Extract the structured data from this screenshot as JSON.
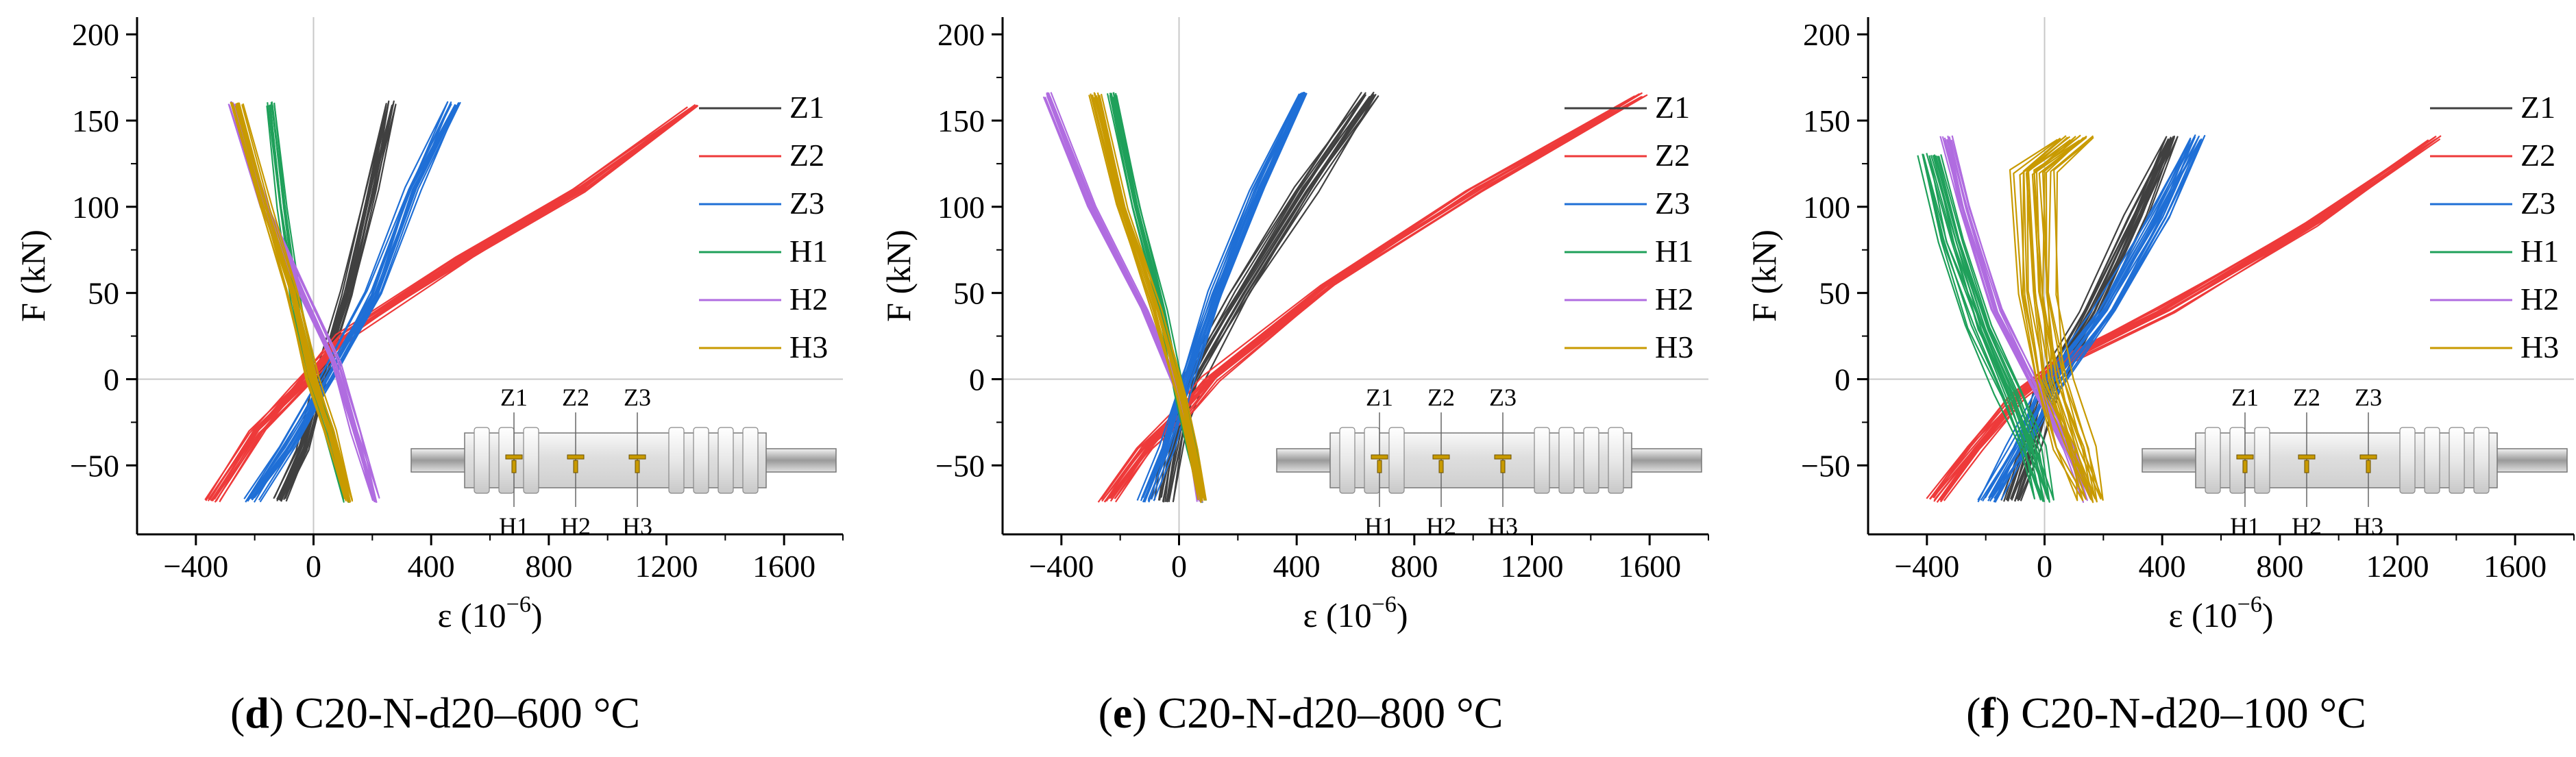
{
  "chart_data": [
    {
      "panel_letter": "d",
      "caption_rest": " C20-N-d20–600 °C",
      "type": "line",
      "xlabel": "ε (10",
      "xlabel_exp": "−6",
      "xlabel_end": ")",
      "ylabel": "F (kN)",
      "xlim": [
        -600,
        1800
      ],
      "ylim": [
        -90,
        210
      ],
      "xticks": [
        -400,
        0,
        400,
        800,
        1200,
        1600
      ],
      "xtick_labels": [
        "−400",
        "0",
        "400",
        "800",
        "1200",
        "1600"
      ],
      "yticks": [
        -50,
        0,
        50,
        100,
        150,
        200
      ],
      "ytick_labels": [
        "−50",
        "0",
        "50",
        "100",
        "150",
        "200"
      ],
      "legend_position": "top-right",
      "gauge_labels_top": [
        "Z1",
        "Z2",
        "Z3"
      ],
      "gauge_labels_bottom": [
        "H1",
        "H2",
        "H3"
      ],
      "series": [
        {
          "name": "Z1",
          "color": "#404040",
          "cycles": 8,
          "jitter": 14,
          "points": [
            [
              -120,
              -70
            ],
            [
              -40,
              -40
            ],
            [
              20,
              0
            ],
            [
              110,
              50
            ],
            [
              190,
              110
            ],
            [
              260,
              160
            ]
          ]
        },
        {
          "name": "Z2",
          "color": "#ee3a3a",
          "cycles": 8,
          "jitter": 18,
          "points": [
            [
              -350,
              -70
            ],
            [
              -200,
              -30
            ],
            [
              -60,
              -5
            ],
            [
              100,
              25
            ],
            [
              500,
              70
            ],
            [
              900,
              110
            ],
            [
              1290,
              158
            ]
          ]
        },
        {
          "name": "Z3",
          "color": "#1f6fd6",
          "cycles": 8,
          "jitter": 18,
          "points": [
            [
              -220,
              -70
            ],
            [
              -100,
              -40
            ],
            [
              40,
              0
            ],
            [
              200,
              50
            ],
            [
              330,
              110
            ],
            [
              480,
              160
            ]
          ]
        },
        {
          "name": "H1",
          "color": "#1fa05a",
          "cycles": 6,
          "jitter": 10,
          "points": [
            [
              -150,
              160
            ],
            [
              -110,
              100
            ],
            [
              -60,
              40
            ],
            [
              0,
              -5
            ],
            [
              50,
              -30
            ],
            [
              110,
              -70
            ]
          ]
        },
        {
          "name": "H2",
          "color": "#b06ce0",
          "cycles": 6,
          "jitter": 10,
          "points": [
            [
              -280,
              160
            ],
            [
              -170,
              100
            ],
            [
              -40,
              50
            ],
            [
              70,
              10
            ],
            [
              140,
              -30
            ],
            [
              210,
              -70
            ]
          ]
        },
        {
          "name": "H3",
          "color": "#c89a00",
          "cycles": 8,
          "jitter": 14,
          "points": [
            [
              -270,
              160
            ],
            [
              -170,
              100
            ],
            [
              -80,
              50
            ],
            [
              -10,
              0
            ],
            [
              50,
              -30
            ],
            [
              120,
              -70
            ]
          ]
        }
      ]
    },
    {
      "panel_letter": "e",
      "caption_rest": " C20-N-d20–800 °C",
      "type": "line",
      "xlabel": "ε (10",
      "xlabel_exp": "−6",
      "xlabel_end": ")",
      "ylabel": "F (kN)",
      "xlim": [
        -600,
        1800
      ],
      "ylim": [
        -90,
        210
      ],
      "xticks": [
        -400,
        0,
        400,
        800,
        1200,
        1600
      ],
      "xtick_labels": [
        "−400",
        "0",
        "400",
        "800",
        "1200",
        "1600"
      ],
      "yticks": [
        -50,
        0,
        50,
        100,
        150,
        200
      ],
      "ytick_labels": [
        "−50",
        "0",
        "50",
        "100",
        "150",
        "200"
      ],
      "legend_position": "top-right",
      "gauge_labels_top": [
        "Z1",
        "Z2",
        "Z3"
      ],
      "gauge_labels_bottom": [
        "H1",
        "H2",
        "H3"
      ],
      "series": [
        {
          "name": "Z1",
          "color": "#404040",
          "cycles": 8,
          "jitter": 25,
          "points": [
            [
              -60,
              -70
            ],
            [
              -20,
              -30
            ],
            [
              30,
              0
            ],
            [
              200,
              50
            ],
            [
              420,
              110
            ],
            [
              650,
              165
            ]
          ]
        },
        {
          "name": "Z2",
          "color": "#ee3a3a",
          "cycles": 8,
          "jitter": 18,
          "points": [
            [
              -250,
              -70
            ],
            [
              -120,
              -40
            ],
            [
              0,
              -20
            ],
            [
              100,
              0
            ],
            [
              500,
              55
            ],
            [
              1000,
              110
            ],
            [
              1570,
              165
            ]
          ]
        },
        {
          "name": "Z3",
          "color": "#1f6fd6",
          "cycles": 8,
          "jitter": 16,
          "points": [
            [
              -120,
              -70
            ],
            [
              -50,
              -40
            ],
            [
              20,
              0
            ],
            [
              120,
              50
            ],
            [
              260,
              110
            ],
            [
              420,
              165
            ]
          ]
        },
        {
          "name": "H1",
          "color": "#1fa05a",
          "cycles": 6,
          "jitter": 10,
          "points": [
            [
              -230,
              165
            ],
            [
              -150,
              100
            ],
            [
              -60,
              40
            ],
            [
              0,
              -10
            ],
            [
              40,
              -40
            ],
            [
              80,
              -70
            ]
          ]
        },
        {
          "name": "H2",
          "color": "#b06ce0",
          "cycles": 6,
          "jitter": 8,
          "points": [
            [
              -450,
              165
            ],
            [
              -300,
              100
            ],
            [
              -120,
              40
            ],
            [
              0,
              -10
            ],
            [
              40,
              -40
            ],
            [
              70,
              -70
            ]
          ]
        },
        {
          "name": "H3",
          "color": "#c89a00",
          "cycles": 8,
          "jitter": 12,
          "points": [
            [
              -290,
              165
            ],
            [
              -200,
              100
            ],
            [
              -80,
              40
            ],
            [
              0,
              -10
            ],
            [
              40,
              -40
            ],
            [
              80,
              -70
            ]
          ]
        }
      ]
    },
    {
      "panel_letter": "f",
      "caption_rest": " C20-N-d20–100 °C",
      "type": "line",
      "xlabel": "ε (10",
      "xlabel_exp": "−6",
      "xlabel_end": ")",
      "ylabel": "F (kN)",
      "xlim": [
        -600,
        1800
      ],
      "ylim": [
        -90,
        210
      ],
      "xticks": [
        -400,
        0,
        400,
        800,
        1200,
        1600
      ],
      "xtick_labels": [
        "−400",
        "0",
        "400",
        "800",
        "1200",
        "1600"
      ],
      "yticks": [
        -50,
        0,
        50,
        100,
        150,
        200
      ],
      "ytick_labels": [
        "−50",
        "0",
        "50",
        "100",
        "150",
        "200"
      ],
      "legend_position": "top-right",
      "gauge_labels_top": [
        "Z1",
        "Z2",
        "Z3"
      ],
      "gauge_labels_bottom": [
        "H1",
        "H2",
        "H3"
      ],
      "series": [
        {
          "name": "Z1",
          "color": "#404040",
          "cycles": 8,
          "jitter": 25,
          "points": [
            [
              -120,
              -70
            ],
            [
              -60,
              -40
            ],
            [
              0,
              -5
            ],
            [
              150,
              40
            ],
            [
              300,
              95
            ],
            [
              430,
              140
            ]
          ]
        },
        {
          "name": "Z2",
          "color": "#ee3a3a",
          "cycles": 8,
          "jitter": 20,
          "points": [
            [
              -380,
              -70
            ],
            [
              -250,
              -40
            ],
            [
              -100,
              -10
            ],
            [
              50,
              10
            ],
            [
              400,
              40
            ],
            [
              900,
              90
            ],
            [
              1330,
              140
            ]
          ]
        },
        {
          "name": "Z3",
          "color": "#1f6fd6",
          "cycles": 8,
          "jitter": 25,
          "points": [
            [
              -200,
              -70
            ],
            [
              -100,
              -40
            ],
            [
              0,
              -5
            ],
            [
              200,
              40
            ],
            [
              380,
              95
            ],
            [
              520,
              140
            ]
          ]
        },
        {
          "name": "H1",
          "color": "#1fa05a",
          "cycles": 8,
          "jitter": 30,
          "points": [
            [
              -400,
              130
            ],
            [
              -330,
              80
            ],
            [
              -230,
              30
            ],
            [
              -130,
              -10
            ],
            [
              -60,
              -40
            ],
            [
              0,
              -70
            ]
          ]
        },
        {
          "name": "H2",
          "color": "#b06ce0",
          "cycles": 6,
          "jitter": 14,
          "points": [
            [
              -340,
              140
            ],
            [
              -280,
              100
            ],
            [
              -170,
              40
            ],
            [
              -20,
              -10
            ],
            [
              80,
              -40
            ],
            [
              150,
              -70
            ]
          ]
        },
        {
          "name": "H3",
          "color": "#c89a00",
          "cycles": 10,
          "jitter": 45,
          "points": [
            [
              90,
              140
            ],
            [
              -60,
              120
            ],
            [
              -40,
              50
            ],
            [
              0,
              0
            ],
            [
              80,
              -40
            ],
            [
              160,
              -70
            ]
          ]
        }
      ]
    }
  ]
}
